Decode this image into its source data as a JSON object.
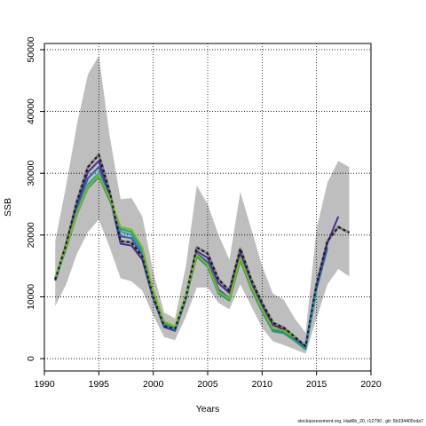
{
  "chart_data": {
    "type": "line",
    "xlabel": "Years",
    "ylabel": "SSB",
    "xlim": [
      1990,
      2020
    ],
    "ylim": [
      -2000,
      51000
    ],
    "x_ticks": [
      1990,
      1995,
      2000,
      2005,
      2010,
      2015,
      2020
    ],
    "y_ticks": [
      0,
      10000,
      20000,
      30000,
      40000,
      50000
    ],
    "grid": "dotted",
    "band": {
      "x": [
        1991,
        1992,
        1993,
        1994,
        1995,
        1996,
        1997,
        1998,
        1999,
        2000,
        2001,
        2002,
        2003,
        2004,
        2005,
        2006,
        2007,
        2008,
        2009,
        2010,
        2011,
        2012,
        2013,
        2014,
        2015,
        2016,
        2017,
        2018
      ],
      "upper": [
        19000,
        28000,
        38000,
        46000,
        49000,
        36000,
        25800,
        26000,
        23000,
        14000,
        7500,
        6500,
        15000,
        28000,
        25000,
        20000,
        16000,
        27000,
        21000,
        15000,
        10500,
        9500,
        6500,
        4200,
        21000,
        28500,
        32000,
        31000
      ],
      "lower": [
        8500,
        12000,
        17000,
        20500,
        22500,
        18000,
        13000,
        12500,
        11000,
        7000,
        3500,
        3000,
        6800,
        11500,
        11500,
        9000,
        8000,
        12000,
        8500,
        5000,
        2800,
        2200,
        1500,
        800,
        6500,
        12000,
        14500,
        13300
      ],
      "color": "#bebebe"
    },
    "series": [
      {
        "color": "#1a1a1a",
        "dashed": true,
        "x": [
          1991,
          1992,
          1993,
          1994,
          1995,
          1996,
          1997,
          1998,
          1999,
          2000,
          2001,
          2002,
          2003,
          2004,
          2005,
          2006,
          2007,
          2008,
          2009,
          2010,
          2011,
          2012,
          2013,
          2014,
          2015,
          2016,
          2017,
          2018
        ],
        "values": [
          12800,
          18500,
          25500,
          31000,
          33000,
          27000,
          19000,
          18800,
          16500,
          10000,
          5300,
          4800,
          10000,
          18000,
          17000,
          12800,
          11000,
          17800,
          12800,
          9000,
          5800,
          5000,
          3500,
          2000,
          12000,
          19000,
          21300,
          20400
        ]
      },
      {
        "color": "#4b2c8f",
        "dashed": false,
        "x": [
          1991,
          1992,
          1993,
          1994,
          1995,
          1996,
          1997,
          1998,
          1999,
          2000,
          2001,
          2002,
          2003,
          2004,
          2005,
          2006,
          2007,
          2008,
          2009,
          2010,
          2011,
          2012,
          2013,
          2014,
          2015,
          2016,
          2017
        ],
        "values": [
          12600,
          18200,
          25000,
          30200,
          32000,
          26300,
          18600,
          18300,
          16000,
          9700,
          5100,
          4500,
          9600,
          17400,
          16300,
          12200,
          10600,
          17200,
          12200,
          8600,
          5400,
          4700,
          3200,
          1900,
          11700,
          18700,
          23000
        ]
      },
      {
        "color": "#2f5fa8",
        "dashed": false,
        "x": [
          1991,
          1992,
          1993,
          1994,
          1995,
          1996,
          1997,
          1998,
          1999,
          2000,
          2001,
          2002,
          2003,
          2004,
          2005,
          2006,
          2007,
          2008,
          2009,
          2010,
          2011,
          2012,
          2013,
          2014,
          2015,
          2016
        ],
        "values": [
          12700,
          18000,
          24500,
          29200,
          31000,
          26000,
          19800,
          19500,
          16800,
          10000,
          5300,
          4600,
          9700,
          17000,
          15600,
          11200,
          9800,
          16500,
          11800,
          8200,
          4800,
          4300,
          3000,
          1700,
          11300,
          17900
        ]
      },
      {
        "color": "#2b9fb5",
        "dashed": false,
        "x": [
          1991,
          1992,
          1993,
          1994,
          1995,
          1996,
          1997,
          1998,
          1999,
          2000,
          2001,
          2002,
          2003,
          2004,
          2005,
          2006,
          2007,
          2008,
          2009,
          2010,
          2011,
          2012,
          2013,
          2014,
          2015
        ],
        "values": [
          12900,
          17800,
          23800,
          28200,
          30000,
          25700,
          20600,
          20000,
          17300,
          10400,
          5600,
          4800,
          9900,
          16700,
          15100,
          10700,
          9500,
          16100,
          11400,
          7800,
          4500,
          4100,
          2900,
          1500,
          10900
        ]
      },
      {
        "color": "#1f9e6a",
        "dashed": false,
        "x": [
          1991,
          1992,
          1993,
          1994,
          1995,
          1996,
          1997,
          1998,
          1999,
          2000,
          2001,
          2002,
          2003,
          2004,
          2005,
          2006,
          2007,
          2008,
          2009,
          2010,
          2011,
          2012,
          2013,
          2014
        ],
        "values": [
          13000,
          17800,
          23400,
          27600,
          29400,
          25600,
          21000,
          20500,
          17700,
          10700,
          5800,
          5000,
          10000,
          16500,
          14900,
          10500,
          9400,
          15900,
          11300,
          7600,
          4400,
          4100,
          2900,
          1500
        ]
      },
      {
        "color": "#86b61e",
        "dashed": false,
        "x": [
          1991,
          1992,
          1993,
          1994,
          1995,
          1996,
          1997,
          1998,
          1999,
          2000,
          2001,
          2002,
          2003,
          2004,
          2005,
          2006,
          2007,
          2008,
          2009,
          2010,
          2011,
          2012,
          2013
        ],
        "values": [
          13200,
          18100,
          23600,
          27800,
          29700,
          26000,
          21300,
          20900,
          18000,
          11000,
          6000,
          5200,
          10300,
          16800,
          15200,
          10800,
          9700,
          16300,
          11700,
          8000,
          4900,
          4500,
          3400
        ]
      }
    ]
  },
  "footer_text": "stockassessment.org, Had6b_20, r12790 , git: 5b334405cda7"
}
